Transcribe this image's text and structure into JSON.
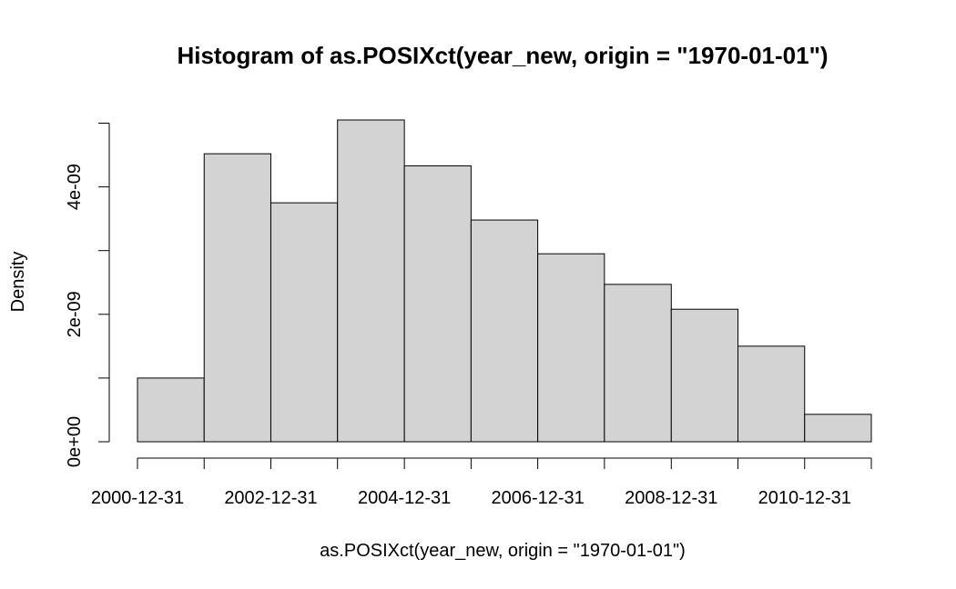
{
  "chart_data": {
    "type": "bar",
    "title": "Histogram of as.POSIXct(year_new, origin = \"1970-01-01\")",
    "xlabel": "as.POSIXct(year_new, origin = \"1970-01-01\")",
    "ylabel": "Density",
    "bins": [
      {
        "start": "2000-12-31",
        "end": "2001-12-31",
        "density": 1e-09
      },
      {
        "start": "2001-12-31",
        "end": "2002-12-31",
        "density": 4.52e-09
      },
      {
        "start": "2002-12-31",
        "end": "2003-12-31",
        "density": 3.75e-09
      },
      {
        "start": "2003-12-31",
        "end": "2004-12-31",
        "density": 5.05e-09
      },
      {
        "start": "2004-12-31",
        "end": "2005-12-31",
        "density": 4.33e-09
      },
      {
        "start": "2005-12-31",
        "end": "2006-12-31",
        "density": 3.48e-09
      },
      {
        "start": "2006-12-31",
        "end": "2007-12-31",
        "density": 2.95e-09
      },
      {
        "start": "2007-12-31",
        "end": "2008-12-31",
        "density": 2.47e-09
      },
      {
        "start": "2008-12-31",
        "end": "2009-12-31",
        "density": 2.08e-09
      },
      {
        "start": "2009-12-31",
        "end": "2010-12-31",
        "density": 1.5e-09
      },
      {
        "start": "2010-12-31",
        "end": "2011-12-31",
        "density": 4.3e-10
      }
    ],
    "x_ticks": [
      "2000-12-31",
      "2001-12-31",
      "2002-12-31",
      "2003-12-31",
      "2004-12-31",
      "2005-12-31",
      "2006-12-31",
      "2007-12-31",
      "2008-12-31",
      "2009-12-31",
      "2010-12-31",
      "2011-12-31"
    ],
    "x_tick_labels": [
      "2000-12-31",
      "",
      "2002-12-31",
      "",
      "2004-12-31",
      "",
      "2006-12-31",
      "",
      "2008-12-31",
      "",
      "2010-12-31",
      ""
    ],
    "y_ticks": [
      0,
      1e-09,
      2e-09,
      3e-09,
      4e-09,
      5e-09
    ],
    "y_tick_labels": [
      "0e+00",
      "",
      "2e-09",
      "",
      "4e-09",
      ""
    ],
    "ylim": [
      0,
      5.05e-09
    ],
    "grid": false,
    "legend": "none",
    "colors": {
      "bar_fill": "#d3d3d3",
      "bar_stroke": "#000000"
    }
  }
}
